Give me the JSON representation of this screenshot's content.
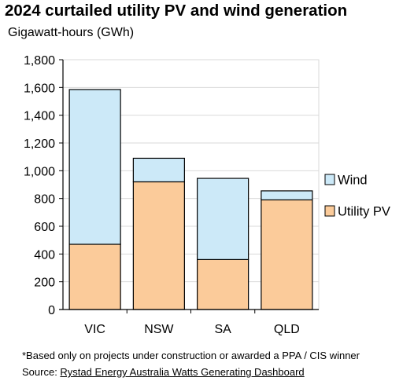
{
  "chart_data": {
    "type": "bar",
    "stacked": true,
    "title": "2024 curtailed utility PV and wind generation",
    "subtitle": "Gigawatt-hours (GWh)",
    "categories": [
      "VIC",
      "NSW",
      "SA",
      "QLD"
    ],
    "series": [
      {
        "name": "Utility PV",
        "values": [
          470,
          920,
          360,
          790
        ],
        "color": "#FBCB9A"
      },
      {
        "name": "Wind",
        "values": [
          1115,
          170,
          585,
          65
        ],
        "color": "#CCE9F8"
      }
    ],
    "ylim": [
      0,
      1800
    ],
    "yticks": [
      "0",
      "200",
      "400",
      "600",
      "800",
      "1,000",
      "1,200",
      "1,400",
      "1,600",
      "1,800"
    ],
    "grid": true,
    "legend_position": "right",
    "legend_order": [
      "Wind",
      "Utility PV"
    ]
  },
  "footnote": "*Based only on projects under construction or awarded a PPA / CIS winner",
  "source_prefix": "Source: ",
  "source_link": "Rystad Energy Australia Watts Generating Dashboard"
}
